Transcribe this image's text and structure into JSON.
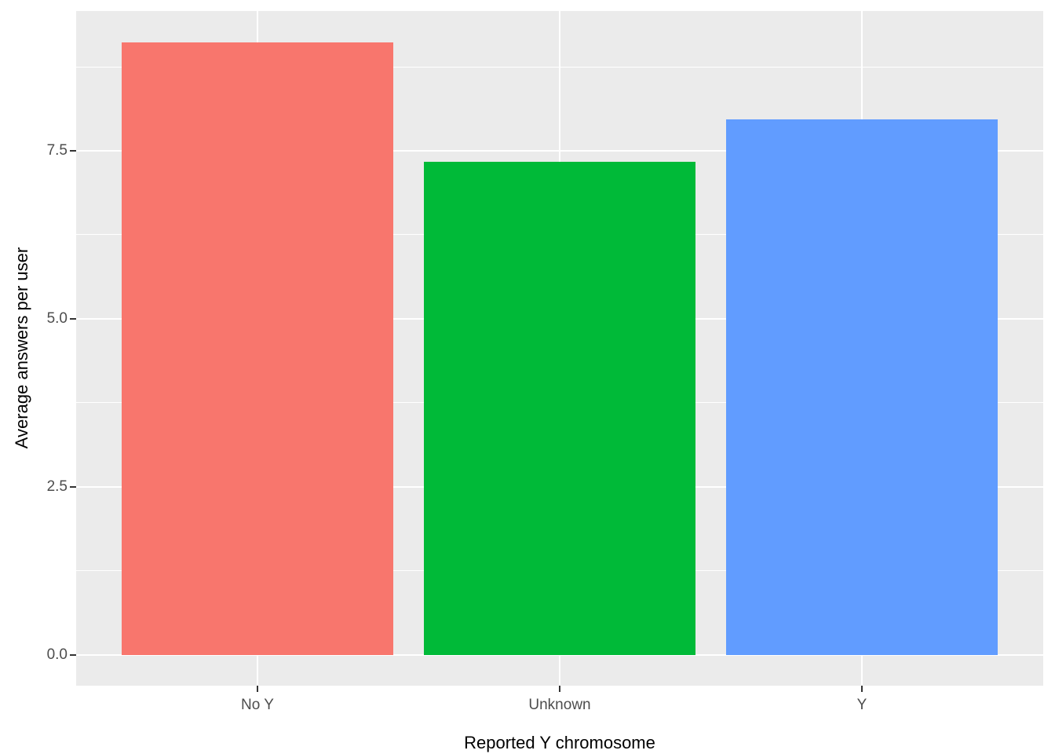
{
  "chart_data": {
    "type": "bar",
    "title": "",
    "xlabel": "Reported Y chromosome",
    "ylabel": "Average answers per user",
    "categories": [
      "No Y",
      "Unknown",
      "Y"
    ],
    "values": [
      9.11,
      7.34,
      7.97
    ],
    "bar_colors": [
      "#F8766D",
      "#00BA38",
      "#619CFF"
    ],
    "y_ticks": [
      0.0,
      2.5,
      5.0,
      7.5
    ],
    "y_tick_labels": [
      "0.0",
      "2.5",
      "5.0",
      "7.5"
    ],
    "y_minor_ticks": [
      1.25,
      3.75,
      6.25,
      8.75
    ],
    "ylim": [
      -0.46,
      9.58
    ],
    "bar_width_fraction": 0.9,
    "grid": true,
    "legend": "none",
    "style": {
      "panel_bg": "#EBEBEB",
      "grid_color": "#FFFFFF",
      "tick_mark_color": "#333333",
      "tick_label_color": "#4D4D4D",
      "axis_title_color": "#000000",
      "background": "#FFFFFF"
    }
  }
}
